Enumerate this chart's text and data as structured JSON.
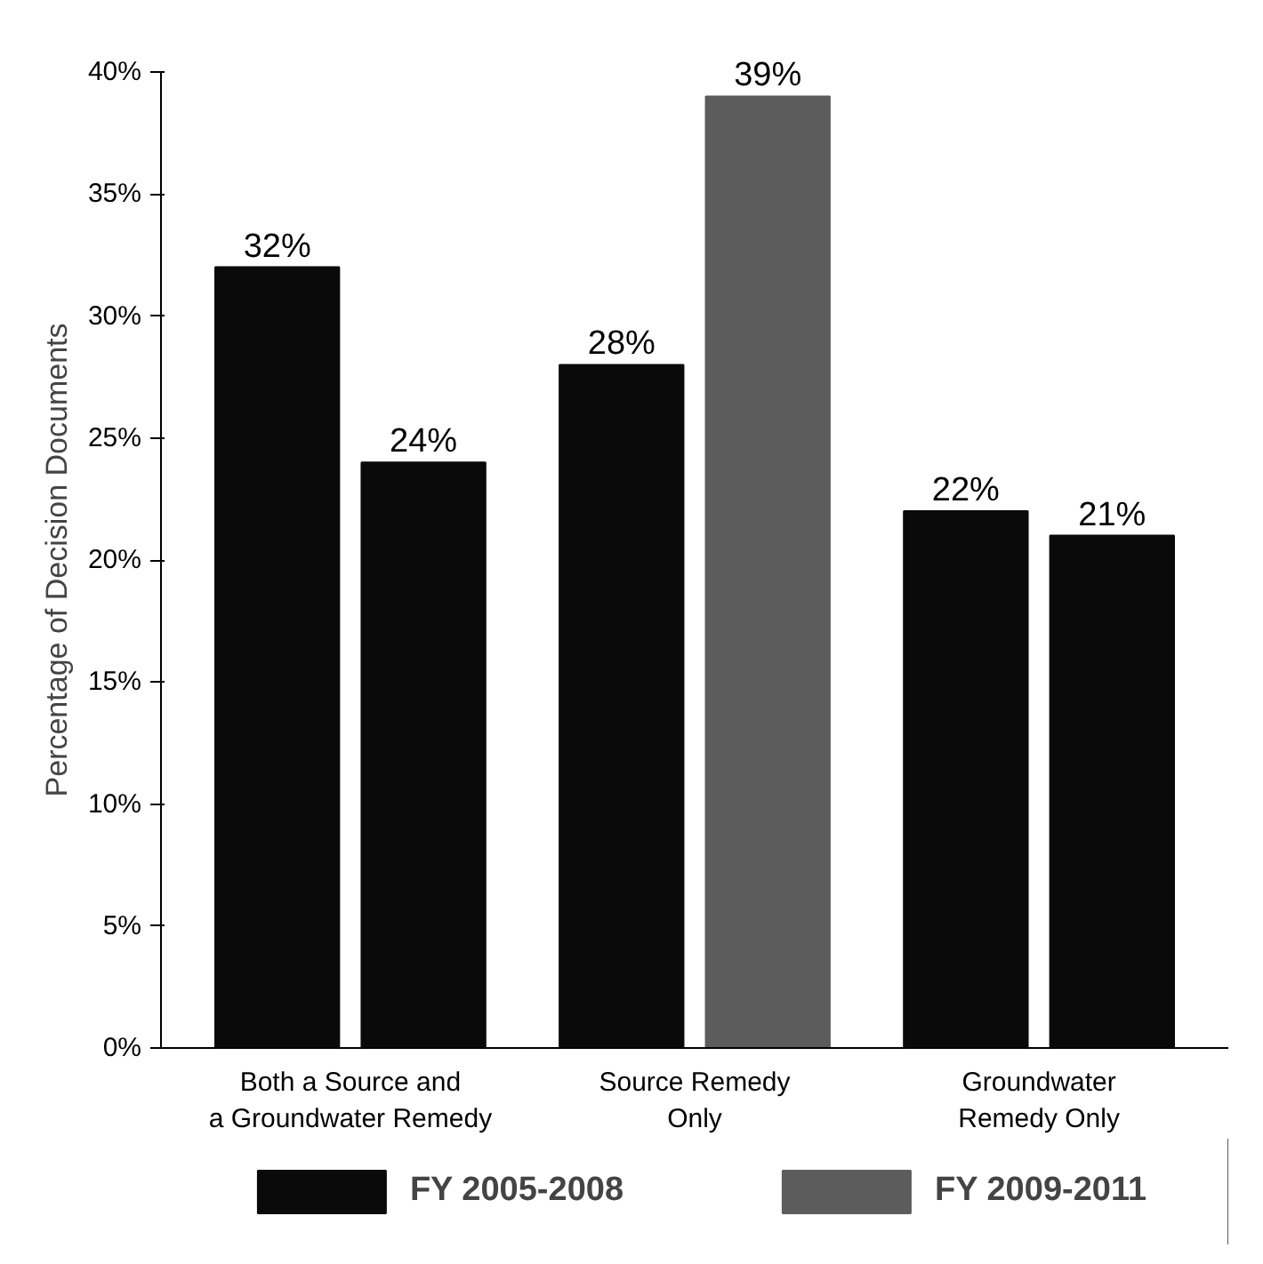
{
  "chart_data": {
    "type": "bar",
    "ylabel": "Percentage of Decision Documents",
    "categories": [
      "Both a Source and\na Groundwater Remedy",
      "Source Remedy\nOnly",
      "Groundwater\nRemedy Only"
    ],
    "series": [
      {
        "name": "FY 2005-2008",
        "color": "#0a0a0a",
        "values": [
          32,
          28,
          22
        ],
        "value_labels": [
          "32%",
          "28%",
          "22%"
        ]
      },
      {
        "name": "FY 2009-2011",
        "color": "#5c5c5c",
        "colors": [
          "#0a0a0a",
          "#5c5c5c",
          "#0a0a0a"
        ],
        "values": [
          24,
          39,
          21
        ],
        "value_labels": [
          "24%",
          "39%",
          "21%"
        ]
      }
    ],
    "ylim": [
      0,
      40
    ],
    "yticks": [
      {
        "value": 0,
        "label": "0%"
      },
      {
        "value": 5,
        "label": "5%"
      },
      {
        "value": 10,
        "label": "10%"
      },
      {
        "value": 15,
        "label": "15%"
      },
      {
        "value": 20,
        "label": "20%"
      },
      {
        "value": 25,
        "label": "25%"
      },
      {
        "value": 30,
        "label": "30%"
      },
      {
        "value": 35,
        "label": "35%"
      },
      {
        "value": 40,
        "label": "40%"
      }
    ],
    "grid": false,
    "legend": "bottom"
  }
}
